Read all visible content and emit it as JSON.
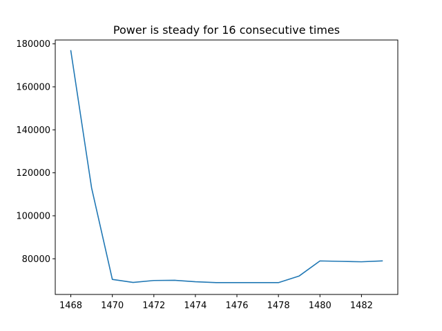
{
  "chart_data": {
    "type": "line",
    "title": "Power is steady for 16 consecutive times",
    "xlabel": "",
    "ylabel": "",
    "xlim": [
      1467.25,
      1483.75
    ],
    "ylim": [
      63400,
      181800
    ],
    "xticks": [
      1468,
      1470,
      1472,
      1474,
      1476,
      1478,
      1480,
      1482
    ],
    "yticks": [
      80000,
      100000,
      120000,
      140000,
      160000,
      180000
    ],
    "xtick_labels": [
      "1468",
      "1470",
      "1472",
      "1474",
      "1476",
      "1478",
      "1480",
      "1482"
    ],
    "ytick_labels": [
      "80000",
      "100000",
      "120000",
      "140000",
      "160000",
      "180000"
    ],
    "grid": false,
    "legend": "none",
    "series": [
      {
        "color": "#1f77b4",
        "x": [
          1468,
          1469,
          1470,
          1471,
          1472,
          1473,
          1474,
          1475,
          1476,
          1477,
          1478,
          1479,
          1480,
          1481,
          1482,
          1483
        ],
        "y": [
          176800,
          113000,
          70400,
          69000,
          69900,
          70000,
          69300,
          68900,
          68900,
          68900,
          68900,
          72000,
          79000,
          78800,
          78600,
          79000
        ]
      }
    ]
  }
}
